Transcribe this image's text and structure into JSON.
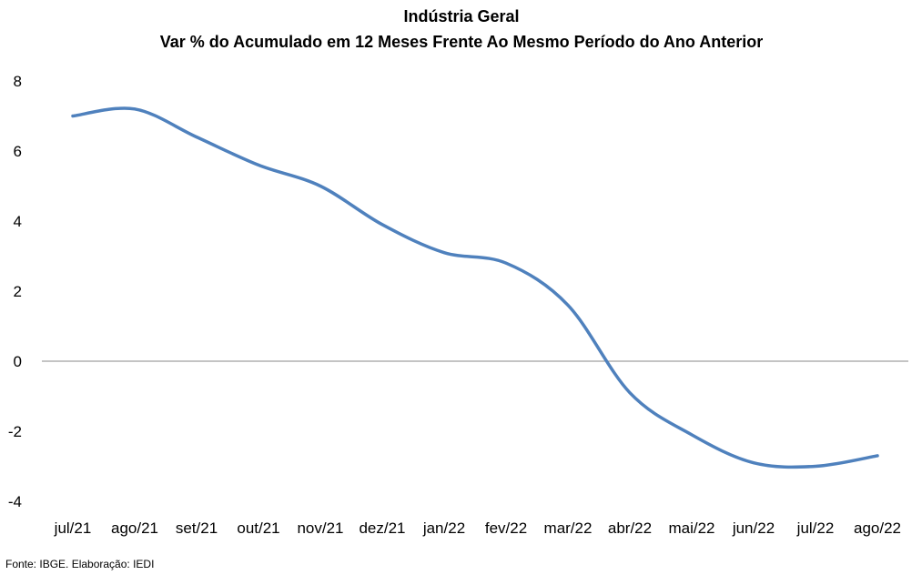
{
  "chart_data": {
    "type": "line",
    "title": "Indústria Geral",
    "subtitle": "Var % do Acumulado em 12 Meses Frente Ao Mesmo Período do Ano Anterior",
    "categories": [
      "jul/21",
      "ago/21",
      "set/21",
      "out/21",
      "nov/21",
      "dez/21",
      "jan/22",
      "fev/22",
      "mar/22",
      "abr/22",
      "mai/22",
      "jun/22",
      "jul/22",
      "ago/22"
    ],
    "series": [
      {
        "values": [
          7.0,
          7.2,
          6.4,
          5.6,
          5.0,
          3.9,
          3.1,
          2.8,
          1.6,
          -0.9,
          -2.1,
          -2.9,
          -3.0,
          -2.7
        ]
      }
    ],
    "ylim": [
      -4,
      8
    ],
    "yticks": [
      8,
      6,
      4,
      2,
      0,
      -2,
      -4
    ],
    "ytick_labels": [
      "8",
      "6",
      "4",
      "2",
      "0",
      "-2",
      "-4"
    ],
    "xlabel": "",
    "ylabel": "",
    "grid": false,
    "zero_line": true,
    "legend": "none",
    "line_color": "#4F81BD"
  },
  "source_note": "Fonte: IBGE. Elaboração: IEDI"
}
